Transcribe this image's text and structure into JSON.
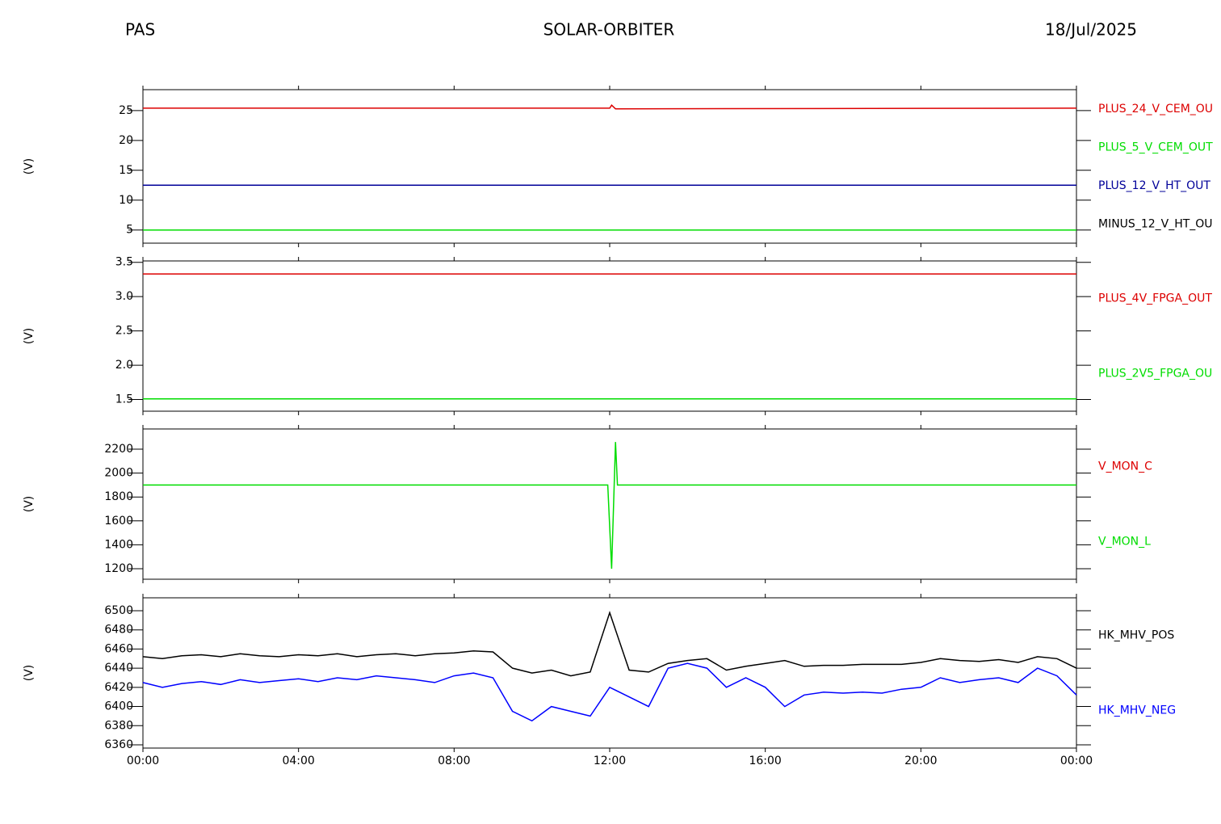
{
  "header": {
    "left": "PAS",
    "center": "SOLAR-ORBITER",
    "right": "18/Jul/2025"
  },
  "chart_data": [
    {
      "type": "line",
      "ylabel": "(V)",
      "xlim": [
        0,
        24
      ],
      "xticks": [
        0,
        4,
        8,
        12,
        16,
        20,
        24
      ],
      "ylim": [
        2.8,
        28.5
      ],
      "yticks": [
        5,
        10,
        15,
        20,
        25
      ],
      "x": [
        0,
        12,
        12.05,
        12.15,
        24
      ],
      "series": [
        {
          "name": "PLUS_24_V_CEM_OU",
          "color": "#dd0000",
          "values": [
            25.4,
            25.4,
            25.9,
            25.3,
            25.4
          ]
        },
        {
          "name": "PLUS_5_V_CEM_OUT",
          "color": "#00dd00",
          "values": [
            5.0,
            5.0,
            5.0,
            5.0,
            5.0
          ]
        },
        {
          "name": "PLUS_12_V_HT_OUT",
          "color": "#000099",
          "values": [
            12.5,
            12.5,
            12.5,
            12.5,
            12.5
          ]
        },
        {
          "name": "MINUS_12_V_HT_OU",
          "color": "#000000",
          "values": [
            null,
            null,
            null,
            null,
            null
          ]
        }
      ]
    },
    {
      "type": "line",
      "ylabel": "(V)",
      "xlim": [
        0,
        24
      ],
      "xticks": [
        0,
        4,
        8,
        12,
        16,
        20,
        24
      ],
      "ylim": [
        1.33,
        3.52
      ],
      "yticks": [
        1.5,
        {
          "value": 2,
          "label": "2.0"
        },
        2.5,
        {
          "value": 3,
          "label": "3.0"
        },
        3.5
      ],
      "x": [
        0,
        24
      ],
      "series": [
        {
          "name": "PLUS_4V_FPGA_OUT",
          "color": "#dd0000",
          "values": [
            3.33,
            3.33
          ]
        },
        {
          "name": "PLUS_2V5_FPGA_OU",
          "color": "#00dd00",
          "values": [
            1.51,
            1.51
          ]
        }
      ]
    },
    {
      "type": "line",
      "ylabel": "(V)",
      "xlim": [
        0,
        24
      ],
      "xticks": [
        0,
        4,
        8,
        12,
        16,
        20,
        24
      ],
      "ylim": [
        1112,
        2369
      ],
      "yticks": [
        1200,
        1400,
        1600,
        1800,
        2000,
        2200
      ],
      "x": [
        0,
        11.95,
        12.05,
        12.15,
        12.2,
        24
      ],
      "series": [
        {
          "name": "V_MON_C",
          "color": "#dd0000",
          "values": [
            null,
            null,
            null,
            null,
            null,
            null
          ]
        },
        {
          "name": "V_MON_L",
          "color": "#00dd00",
          "values": [
            1900,
            1900,
            1200,
            2260,
            1900,
            1900
          ]
        }
      ]
    },
    {
      "type": "line",
      "ylabel": "(V)",
      "xlim": [
        0,
        24
      ],
      "xticks": [
        {
          "value": 0,
          "label": "00:00"
        },
        {
          "value": 4,
          "label": "04:00"
        },
        {
          "value": 8,
          "label": "08:00"
        },
        {
          "value": 12,
          "label": "12:00"
        },
        {
          "value": 16,
          "label": "16:00"
        },
        {
          "value": 20,
          "label": "20:00"
        },
        {
          "value": 24,
          "label": "00:00"
        }
      ],
      "ylim": [
        6356.6,
        6513.5
      ],
      "yticks": [
        6360,
        6380,
        6400,
        6420,
        6440,
        6460,
        6480,
        6500
      ],
      "x": [
        0,
        0.5,
        1,
        1.5,
        2,
        2.5,
        3,
        3.5,
        4,
        4.5,
        5,
        5.5,
        6,
        6.5,
        7,
        7.5,
        8,
        8.5,
        9,
        9.5,
        10,
        10.5,
        11,
        11.5,
        12,
        12.5,
        13,
        13.5,
        14,
        14.5,
        15,
        15.5,
        16,
        16.5,
        17,
        17.5,
        18,
        18.5,
        19,
        19.5,
        20,
        20.5,
        21,
        21.5,
        22,
        22.5,
        23,
        23.5,
        24
      ],
      "series": [
        {
          "name": "HK_MHV_POS",
          "color": "#000000",
          "values": [
            6452,
            6450,
            6453,
            6454,
            6452,
            6455,
            6453,
            6452,
            6454,
            6453,
            6455,
            6452,
            6454,
            6455,
            6453,
            6455,
            6456,
            6458,
            6457,
            6440,
            6435,
            6438,
            6432,
            6436,
            6498,
            6438,
            6436,
            6445,
            6448,
            6450,
            6438,
            6442,
            6445,
            6448,
            6442,
            6443,
            6443,
            6444,
            6444,
            6444,
            6446,
            6450,
            6448,
            6447,
            6449,
            6446,
            6452,
            6450,
            6440
          ]
        },
        {
          "name": "HK_MHV_NEG",
          "color": "#0000ff",
          "values": [
            6425,
            6420,
            6424,
            6426,
            6423,
            6428,
            6425,
            6427,
            6429,
            6426,
            6430,
            6428,
            6432,
            6430,
            6428,
            6425,
            6432,
            6435,
            6430,
            6395,
            6385,
            6400,
            6395,
            6390,
            6420,
            6410,
            6400,
            6440,
            6445,
            6440,
            6420,
            6430,
            6420,
            6400,
            6412,
            6415,
            6414,
            6415,
            6414,
            6418,
            6420,
            6430,
            6425,
            6428,
            6430,
            6425,
            6440,
            6432,
            6412
          ]
        }
      ]
    }
  ]
}
